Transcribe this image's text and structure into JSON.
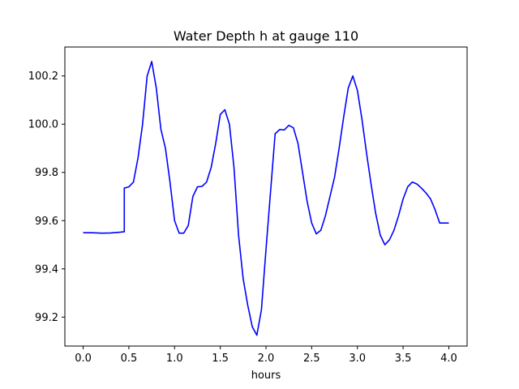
{
  "chart_data": {
    "type": "line",
    "title": "Water Depth h at gauge 110",
    "xlabel": "hours",
    "ylabel": "",
    "xlim": [
      -0.2,
      4.2
    ],
    "ylim": [
      99.08,
      100.32
    ],
    "xticks": [
      0.0,
      0.5,
      1.0,
      1.5,
      2.0,
      2.5,
      3.0,
      3.5,
      4.0
    ],
    "xtick_labels": [
      "0.0",
      "0.5",
      "1.0",
      "1.5",
      "2.0",
      "2.5",
      "3.0",
      "3.5",
      "4.0"
    ],
    "yticks": [
      99.2,
      99.4,
      99.6,
      99.8,
      100.0,
      100.2
    ],
    "ytick_labels": [
      "99.2",
      "99.4",
      "99.6",
      "99.8",
      "100.0",
      "100.2"
    ],
    "grid": false,
    "legend": "none",
    "series": [
      {
        "color": "#0000ff",
        "points": [
          [
            0.0,
            99.55
          ],
          [
            0.1,
            99.55
          ],
          [
            0.2,
            99.548
          ],
          [
            0.3,
            99.549
          ],
          [
            0.4,
            99.552
          ],
          [
            0.45,
            99.554
          ],
          [
            0.45,
            99.735
          ],
          [
            0.5,
            99.74
          ],
          [
            0.55,
            99.76
          ],
          [
            0.6,
            99.86
          ],
          [
            0.65,
            100.0
          ],
          [
            0.7,
            100.2
          ],
          [
            0.75,
            100.26
          ],
          [
            0.8,
            100.15
          ],
          [
            0.85,
            99.98
          ],
          [
            0.9,
            99.9
          ],
          [
            0.95,
            99.76
          ],
          [
            1.0,
            99.6
          ],
          [
            1.05,
            99.548
          ],
          [
            1.1,
            99.548
          ],
          [
            1.15,
            99.58
          ],
          [
            1.2,
            99.7
          ],
          [
            1.25,
            99.74
          ],
          [
            1.3,
            99.742
          ],
          [
            1.35,
            99.76
          ],
          [
            1.4,
            99.82
          ],
          [
            1.45,
            99.92
          ],
          [
            1.5,
            100.04
          ],
          [
            1.55,
            100.06
          ],
          [
            1.6,
            100.0
          ],
          [
            1.65,
            99.82
          ],
          [
            1.7,
            99.54
          ],
          [
            1.75,
            99.36
          ],
          [
            1.8,
            99.25
          ],
          [
            1.85,
            99.16
          ],
          [
            1.9,
            99.125
          ],
          [
            1.95,
            99.23
          ],
          [
            2.0,
            99.48
          ],
          [
            2.05,
            99.72
          ],
          [
            2.1,
            99.96
          ],
          [
            2.15,
            99.978
          ],
          [
            2.2,
            99.976
          ],
          [
            2.25,
            99.995
          ],
          [
            2.3,
            99.985
          ],
          [
            2.35,
            99.92
          ],
          [
            2.4,
            99.8
          ],
          [
            2.45,
            99.68
          ],
          [
            2.5,
            99.59
          ],
          [
            2.55,
            99.545
          ],
          [
            2.6,
            99.56
          ],
          [
            2.65,
            99.62
          ],
          [
            2.7,
            99.7
          ],
          [
            2.75,
            99.78
          ],
          [
            2.8,
            99.9
          ],
          [
            2.85,
            100.03
          ],
          [
            2.9,
            100.15
          ],
          [
            2.95,
            100.2
          ],
          [
            3.0,
            100.14
          ],
          [
            3.05,
            100.02
          ],
          [
            3.1,
            99.88
          ],
          [
            3.15,
            99.75
          ],
          [
            3.2,
            99.63
          ],
          [
            3.25,
            99.54
          ],
          [
            3.3,
            99.5
          ],
          [
            3.35,
            99.52
          ],
          [
            3.4,
            99.56
          ],
          [
            3.45,
            99.62
          ],
          [
            3.5,
            99.69
          ],
          [
            3.55,
            99.74
          ],
          [
            3.6,
            99.76
          ],
          [
            3.65,
            99.752
          ],
          [
            3.7,
            99.735
          ],
          [
            3.75,
            99.715
          ],
          [
            3.8,
            99.69
          ],
          [
            3.85,
            99.645
          ],
          [
            3.9,
            99.59
          ],
          [
            4.0,
            99.59
          ]
        ]
      }
    ]
  }
}
